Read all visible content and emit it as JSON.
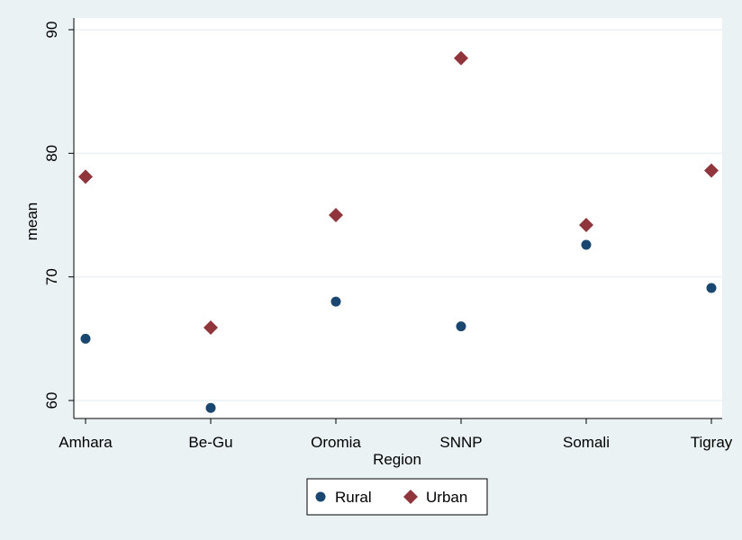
{
  "chart_data": {
    "type": "scatter",
    "categories": [
      "Amhara",
      "Be-Gu",
      "Oromia",
      "SNNP",
      "Somali",
      "Tigray"
    ],
    "series": [
      {
        "name": "Rural",
        "marker": "circle",
        "color": "#1a476f",
        "values": [
          65.0,
          59.4,
          68.0,
          66.0,
          72.6,
          69.1
        ]
      },
      {
        "name": "Urban",
        "marker": "diamond",
        "color": "#90353b",
        "values": [
          78.1,
          65.9,
          75.0,
          87.7,
          74.2,
          78.6
        ]
      }
    ],
    "xlabel": "Region",
    "ylabel": "mean",
    "yticks": [
      60,
      70,
      80,
      90
    ],
    "ylim": [
      59.0,
      90.0
    ],
    "grid": true,
    "legend_position": "bottom"
  }
}
